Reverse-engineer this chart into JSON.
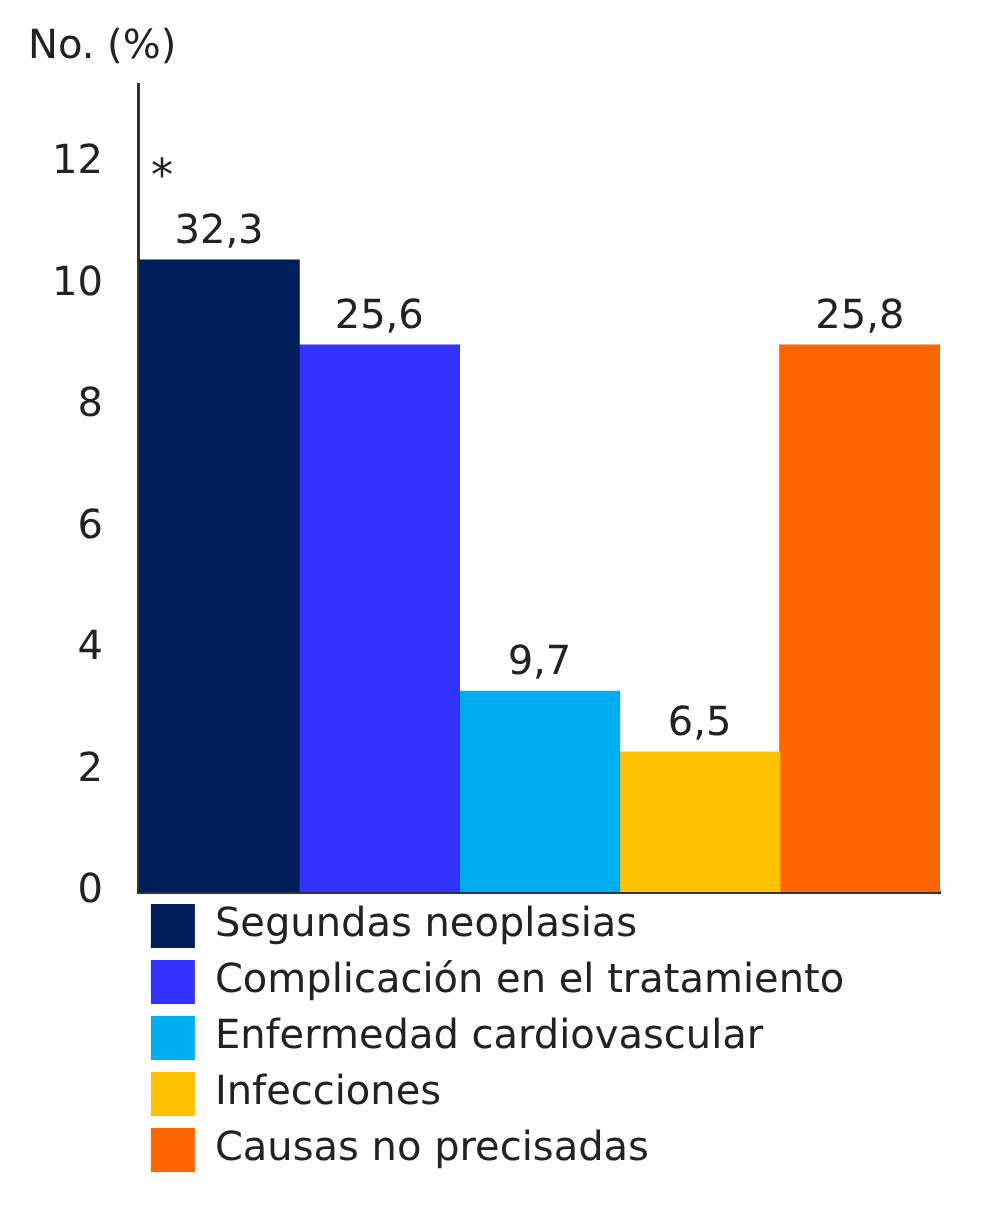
{
  "chart_data": {
    "type": "bar",
    "ylabel": "No. (%)",
    "categories": [
      null
    ],
    "series": [
      {
        "name": "Segundas neoplasias",
        "color": "#021f5c",
        "values": [
          10.4
        ]
      },
      {
        "name": "Complicación en el tratamiento",
        "color": "#3333ff",
        "values": [
          9.0
        ]
      },
      {
        "name": "Enfermedad cardiovascular",
        "color": "#00aeef",
        "values": [
          3.3
        ]
      },
      {
        "name": "Infecciones",
        "color": "#ffc000",
        "values": [
          2.3
        ]
      },
      {
        "name": "Causas no precisadas",
        "color": "#ff6600",
        "values": [
          9.0
        ]
      }
    ],
    "annotations": [
      {
        "text": "32,3",
        "y": 10.4
      },
      {
        "text": "*",
        "y": 10.4
      },
      {
        "text": "25,6",
        "y": 9.0
      },
      {
        "text": "9,7",
        "y": 3.3
      },
      {
        "text": "6,5",
        "y": 2.3
      },
      {
        "text": "25,8",
        "y": 9.0
      }
    ],
    "ylim": [
      0,
      13.3
    ],
    "yticks": [
      0,
      2,
      4,
      6,
      8,
      10,
      12
    ],
    "tick_labels": "y",
    "grid": false,
    "legend": "bottom"
  }
}
